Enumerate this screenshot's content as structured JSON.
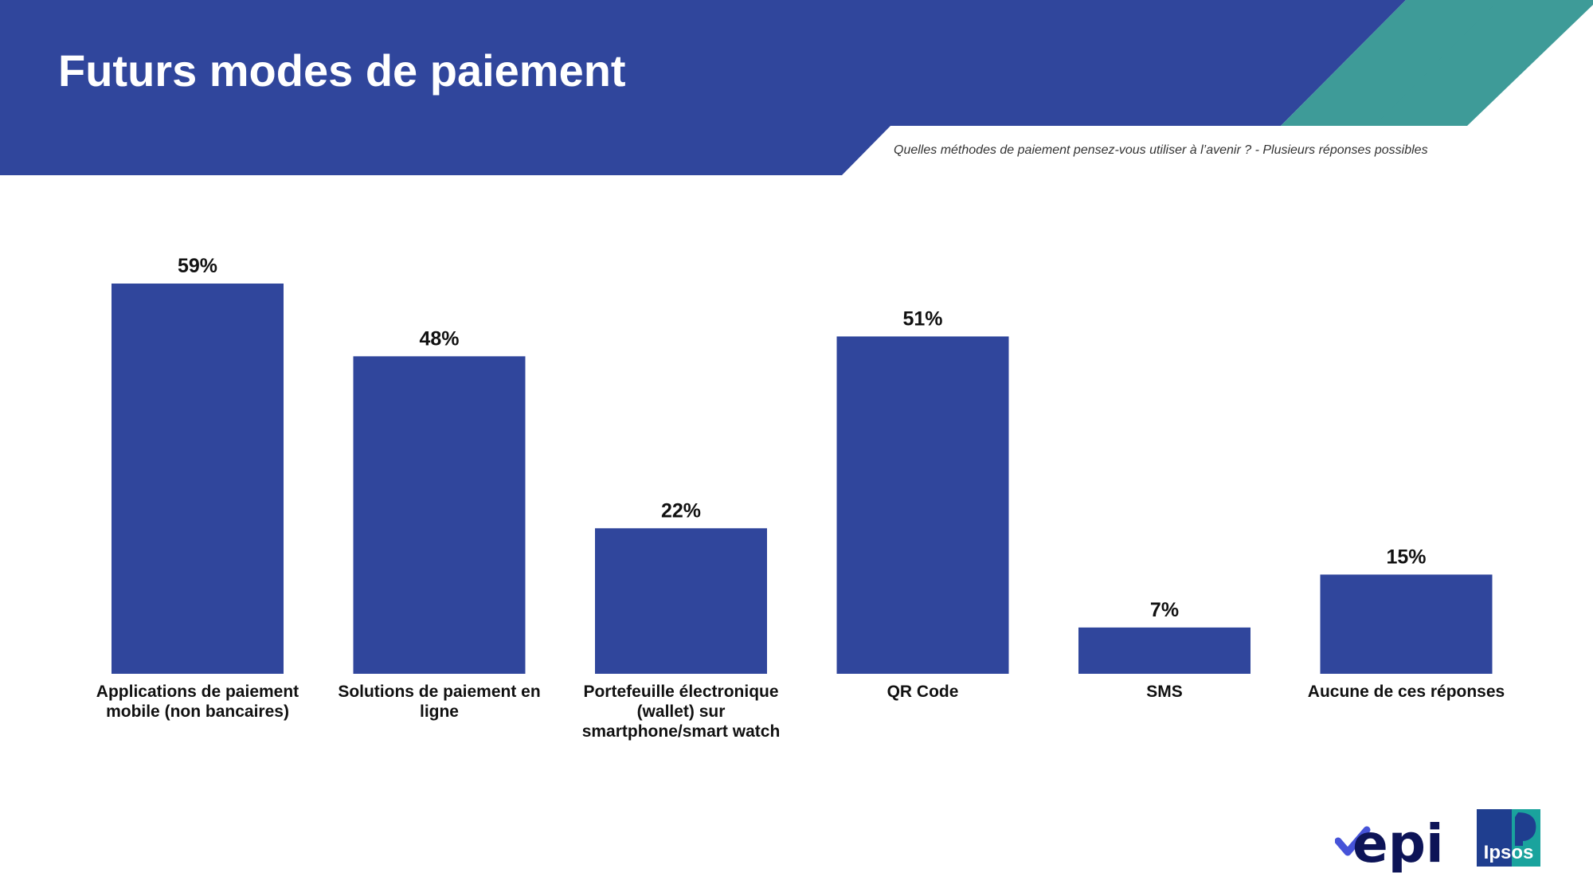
{
  "header": {
    "title": "Futurs modes de paiement",
    "subtitle": "Quelles méthodes de paiement pensez-vous utiliser à l’avenir ? - Plusieurs réponses possibles"
  },
  "colors": {
    "header_blue": "#30469c",
    "bar": "#30469c",
    "teal": "#3e9b98",
    "epi_dark": "#0d1457",
    "epi_accent": "#4653d8",
    "ipsos_teal": "#1aa39d",
    "ipsos_blue": "#1f3e8f"
  },
  "chart_data": {
    "type": "bar",
    "categories": [
      "Applications de paiement mobile (non bancaires)",
      "Solutions de paiement en ligne",
      "Portefeuille électronique (wallet) sur smartphone/smart watch",
      "QR Code",
      "SMS",
      "Aucune de ces réponses"
    ],
    "values": [
      59,
      48,
      22,
      51,
      7,
      15
    ],
    "value_labels": [
      "59%",
      "48%",
      "22%",
      "51%",
      "7%",
      "15%"
    ],
    "unit": "%",
    "ylim": [
      0,
      59
    ],
    "grid": false
  },
  "logos": {
    "epi": "epi",
    "ipsos": "Ipsos"
  }
}
